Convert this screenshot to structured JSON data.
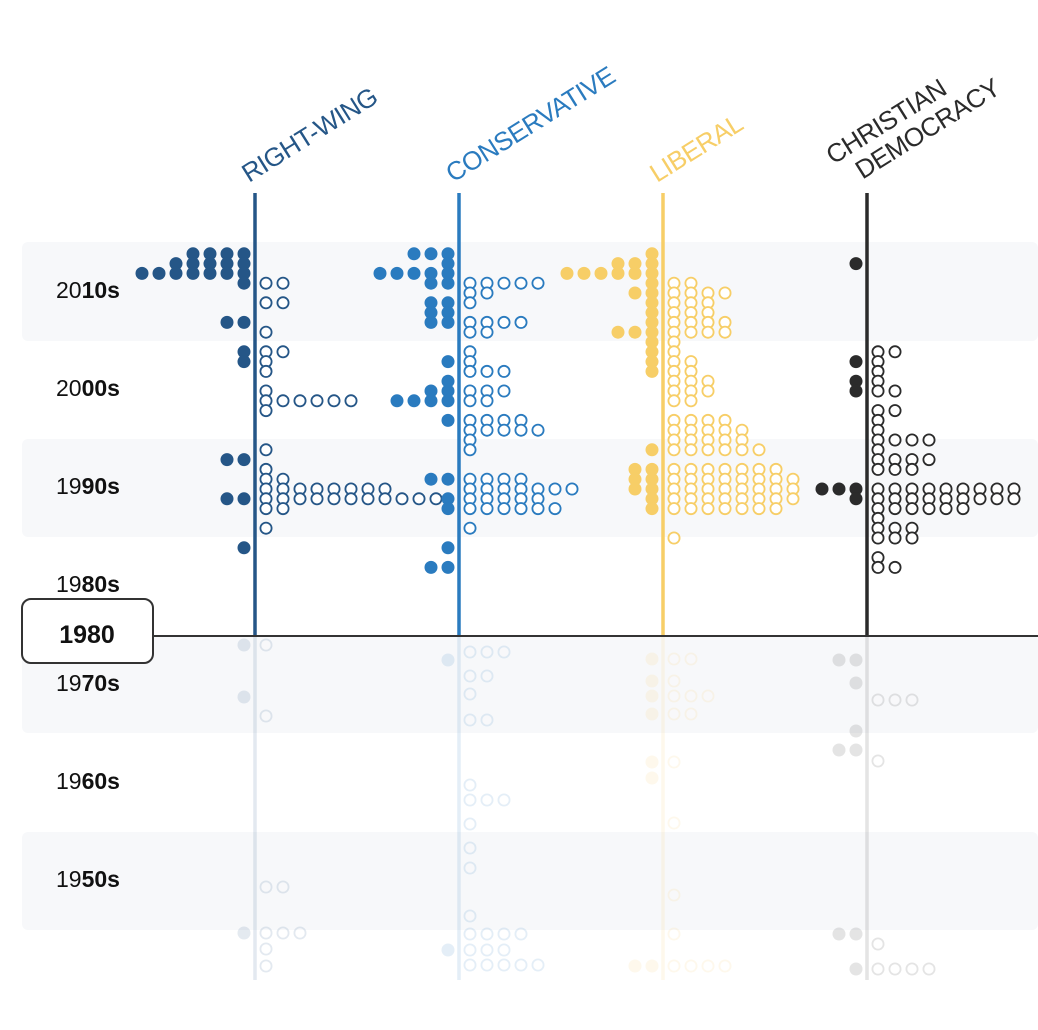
{
  "chart_data": {
    "type": "scatter",
    "current_year": "1980",
    "columns": [
      {
        "key": "right",
        "label": "RIGHT-WING",
        "color": "#255687"
      },
      {
        "key": "cons",
        "label": "CONSERVATIVE",
        "color": "#2a7bbf"
      },
      {
        "key": "lib",
        "label": "LIBERAL",
        "color": "#f7ce67"
      },
      {
        "key": "cd",
        "label_lines": [
          "CHRISTIAN",
          "DEMOCRACY"
        ],
        "color": "#2b2b2b"
      }
    ],
    "decades": [
      {
        "pre": "20",
        "post": "10s"
      },
      {
        "pre": "20",
        "post": "00s"
      },
      {
        "pre": "19",
        "post": "90s"
      },
      {
        "pre": "19",
        "post": "80s"
      },
      {
        "pre": "19",
        "post": "70s"
      },
      {
        "pre": "19",
        "post": "60s"
      },
      {
        "pre": "19",
        "post": "50s"
      }
    ],
    "points_note": "each row: [year, filled_count_left_of_axis, hollow_count_right_of_axis]",
    "series": [
      {
        "key": "right",
        "rows": [
          [
            2019,
            4,
            0
          ],
          [
            2018,
            5,
            0
          ],
          [
            2017,
            7,
            0
          ],
          [
            2016,
            1,
            2
          ],
          [
            2014,
            0,
            2
          ],
          [
            2012,
            2,
            0
          ],
          [
            2011,
            0,
            1
          ],
          [
            2009,
            1,
            2
          ],
          [
            2008,
            1,
            1
          ],
          [
            2007,
            0,
            1
          ],
          [
            2005,
            0,
            1
          ],
          [
            2004,
            0,
            6
          ],
          [
            2003,
            0,
            1
          ],
          [
            1999,
            0,
            1
          ],
          [
            1998,
            2,
            0
          ],
          [
            1997,
            0,
            1
          ],
          [
            1996,
            0,
            2
          ],
          [
            1995,
            0,
            8
          ],
          [
            1994,
            2,
            11
          ],
          [
            1993,
            0,
            2
          ],
          [
            1991,
            0,
            1
          ],
          [
            1989,
            1,
            0
          ]
        ]
      },
      {
        "key": "cons",
        "rows": [
          [
            2019,
            3,
            0
          ],
          [
            2018,
            1,
            0
          ],
          [
            2017,
            5,
            0
          ],
          [
            2016,
            2,
            5
          ],
          [
            2015,
            0,
            2
          ],
          [
            2014,
            2,
            1
          ],
          [
            2013,
            2,
            0
          ],
          [
            2012,
            2,
            4
          ],
          [
            2011,
            0,
            2
          ],
          [
            2009,
            0,
            1
          ],
          [
            2008,
            1,
            1
          ],
          [
            2007,
            0,
            3
          ],
          [
            2006,
            1,
            0
          ],
          [
            2005,
            2,
            3
          ],
          [
            2004,
            4,
            2
          ],
          [
            2002,
            1,
            4
          ],
          [
            2001,
            0,
            5
          ],
          [
            2000,
            0,
            1
          ],
          [
            1999,
            0,
            1
          ],
          [
            1996,
            2,
            4
          ],
          [
            1995,
            0,
            7
          ],
          [
            1994,
            1,
            5
          ],
          [
            1993,
            1,
            6
          ],
          [
            1991,
            0,
            1
          ],
          [
            1989,
            1,
            0
          ],
          [
            1987,
            2,
            0
          ]
        ]
      },
      {
        "key": "lib",
        "rows": [
          [
            2019,
            1,
            0
          ],
          [
            2018,
            3,
            0
          ],
          [
            2017,
            6,
            0
          ],
          [
            2016,
            1,
            2
          ],
          [
            2015,
            2,
            4
          ],
          [
            2014,
            1,
            3
          ],
          [
            2013,
            1,
            3
          ],
          [
            2012,
            1,
            4
          ],
          [
            2011,
            3,
            4
          ],
          [
            2010,
            1,
            1
          ],
          [
            2009,
            1,
            1
          ],
          [
            2008,
            1,
            2
          ],
          [
            2007,
            1,
            2
          ],
          [
            2006,
            0,
            3
          ],
          [
            2005,
            0,
            3
          ],
          [
            2004,
            0,
            2
          ],
          [
            2002,
            0,
            4
          ],
          [
            2001,
            0,
            5
          ],
          [
            2000,
            0,
            5
          ],
          [
            1999,
            1,
            6
          ],
          [
            1997,
            2,
            7
          ],
          [
            1996,
            2,
            8
          ],
          [
            1995,
            2,
            8
          ],
          [
            1994,
            1,
            8
          ],
          [
            1993,
            1,
            7
          ],
          [
            1990,
            0,
            1
          ]
        ]
      },
      {
        "key": "cd",
        "rows": [
          [
            2018,
            1,
            0
          ],
          [
            2009,
            0,
            2
          ],
          [
            2008,
            1,
            1
          ],
          [
            2007,
            0,
            1
          ],
          [
            2006,
            1,
            1
          ],
          [
            2005,
            1,
            2
          ],
          [
            2003,
            0,
            2
          ],
          [
            2002,
            0,
            1
          ],
          [
            2001,
            0,
            1
          ],
          [
            2000,
            0,
            4
          ],
          [
            1999,
            0,
            1
          ],
          [
            1998,
            0,
            4
          ],
          [
            1997,
            0,
            3
          ],
          [
            1995,
            3,
            9
          ],
          [
            1994,
            1,
            9
          ],
          [
            1993,
            0,
            6
          ],
          [
            1992,
            0,
            1
          ],
          [
            1991,
            0,
            3
          ],
          [
            1990,
            0,
            3
          ],
          [
            1989,
            0,
            0
          ],
          [
            1988,
            0,
            1
          ],
          [
            1987,
            0,
            2
          ]
        ]
      }
    ]
  }
}
